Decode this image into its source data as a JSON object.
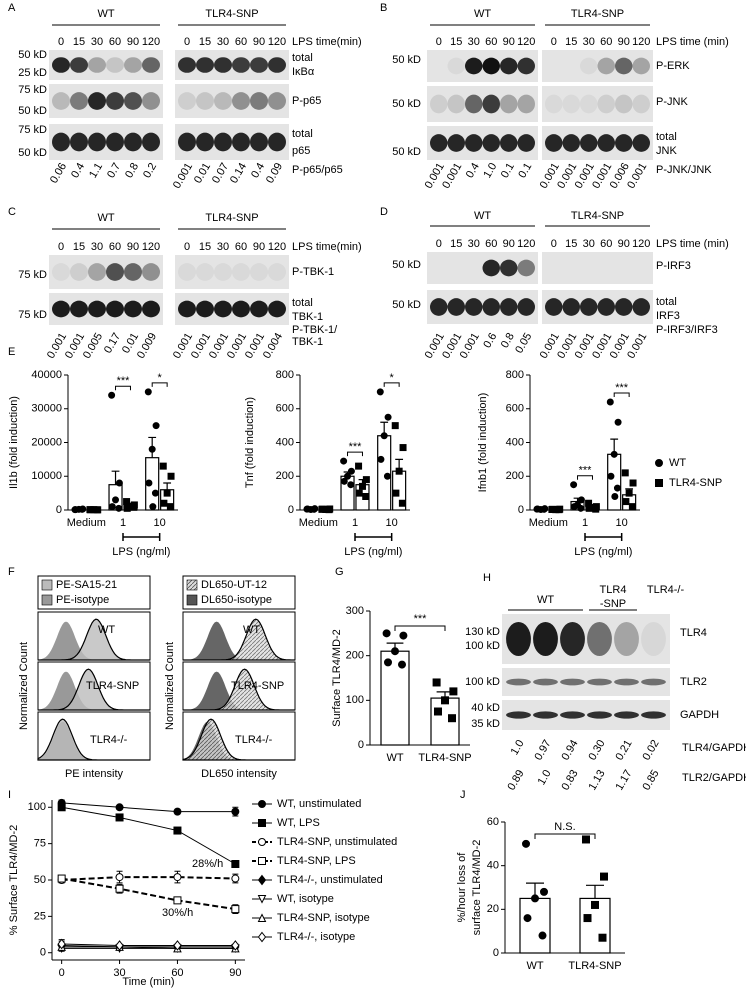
{
  "blots": [
    {
      "label": "A",
      "groups": [
        "WT",
        "TLR4-SNP"
      ],
      "times": [
        0,
        15,
        30,
        60,
        90,
        120
      ],
      "time_label": "LPS time(min)",
      "rows": [
        {
          "markers": [
            "50 kD",
            "25 kD"
          ],
          "name": [
            "total",
            "IκBα"
          ]
        },
        {
          "markers": [
            "75 kD",
            "50 kD"
          ],
          "name": [
            "P-p65"
          ]
        },
        {
          "markers": [
            "75 kD",
            "50 kD"
          ],
          "name": [
            "total",
            "p65"
          ]
        }
      ],
      "ratios": [
        [
          "0.06",
          "0.4",
          "1.1",
          "0.7",
          "0.8",
          "0.2"
        ],
        [
          "0.001",
          "0.01",
          "0.07",
          "0.14",
          "0.4",
          "0.09"
        ]
      ],
      "ratio_label": [
        "P-p65/p65"
      ]
    },
    {
      "label": "B",
      "groups": [
        "WT",
        "TLR4-SNP"
      ],
      "times": [
        0,
        15,
        30,
        60,
        90,
        120
      ],
      "time_label": "LPS time (min)",
      "rows": [
        {
          "markers": [
            "50 kD"
          ],
          "name": [
            "P-ERK"
          ]
        },
        {
          "markers": [
            "50 kD"
          ],
          "name": [
            "P-JNK"
          ]
        },
        {
          "markers": [
            "50 kD"
          ],
          "name": [
            "total",
            "JNK"
          ]
        }
      ],
      "ratios": [
        [
          "0.001",
          "0.001",
          "0.4",
          "1.0",
          "0.1",
          "0.1"
        ],
        [
          "0.001",
          "0.001",
          "0.001",
          "0.001",
          "0.006",
          "0.001"
        ]
      ],
      "ratio_label": [
        "P-JNK/JNK"
      ]
    },
    {
      "label": "C",
      "groups": [
        "WT",
        "TLR4-SNP"
      ],
      "times": [
        0,
        15,
        30,
        60,
        90,
        120
      ],
      "time_label": "LPS time(min)",
      "rows": [
        {
          "markers": [
            "75 kD"
          ],
          "name": [
            "P-TBK-1"
          ]
        },
        {
          "markers": [
            "75 kD"
          ],
          "name": [
            "total",
            "TBK-1"
          ]
        }
      ],
      "ratios": [
        [
          "0.001",
          "0.001",
          "0.005",
          "0.17",
          "0.01",
          "0.009"
        ],
        [
          "0.001",
          "0.001",
          "0.001",
          "0.001",
          "0.001",
          "0.004"
        ]
      ],
      "ratio_label": [
        "P-TBK-1/",
        "TBK-1"
      ]
    },
    {
      "label": "D",
      "groups": [
        "WT",
        "TLR4-SNP"
      ],
      "times": [
        0,
        15,
        30,
        60,
        90,
        120
      ],
      "time_label": "LPS time (min)",
      "rows": [
        {
          "markers": [
            "50 kD"
          ],
          "name": [
            "P-IRF3"
          ]
        },
        {
          "markers": [
            "50 kD"
          ],
          "name": [
            "total",
            "IRF3"
          ]
        }
      ],
      "ratios": [
        [
          "0.001",
          "0.001",
          "0.001",
          "0.6",
          "0.8",
          "0.05"
        ],
        [
          "0.001",
          "0.001",
          "0.001",
          "0.001",
          "0.001",
          "0.001"
        ]
      ],
      "ratio_label": [
        "P-IRF3/IRF3"
      ]
    }
  ],
  "blot_h": {
    "label": "H",
    "groups": [
      [
        "WT"
      ],
      [
        "TLR4",
        "-SNP"
      ],
      [
        "TLR4-/-"
      ]
    ],
    "rows": [
      {
        "markers": [
          "130 kD",
          "100 kD"
        ],
        "name": [
          "TLR4"
        ]
      },
      {
        "markers": [
          "100 kD"
        ],
        "name": [
          "TLR2"
        ]
      },
      {
        "markers": [
          "40 kD",
          "35 kD"
        ],
        "name": [
          "GAPDH"
        ]
      }
    ],
    "ratios": [
      {
        "values": [
          "1.0",
          "0.97",
          "0.94",
          "0.30",
          "0.21",
          "0.02"
        ],
        "label": "TLR4/GAPDH"
      },
      {
        "values": [
          "0.89",
          "1.0",
          "0.83",
          "1.13",
          "1.17",
          "0.85"
        ],
        "label": "TLR2/GAPDH"
      }
    ]
  },
  "flow": {
    "label": "F",
    "ylabel": "Normalized Count",
    "rows": [
      "WT",
      "TLR4-SNP",
      "TLR4-/-"
    ],
    "panels": [
      {
        "legend": [
          "PE-SA15-21",
          "PE-isotype"
        ],
        "xlabel": "PE intensity"
      },
      {
        "legend": [
          "DL650-UT-12",
          "DL650-isotype"
        ],
        "xlabel": "DL650 intensity"
      }
    ]
  },
  "chart_data": [
    {
      "type": "bar",
      "panel": "E",
      "ylabel": "Il1b (fold induction)",
      "xlabel": "LPS (ng/ml)",
      "categories": [
        "Medium",
        "1",
        "10"
      ],
      "ylim": [
        0,
        40000
      ],
      "yticks": [
        0,
        10000,
        20000,
        30000,
        40000
      ],
      "sig": [
        null,
        "***",
        "*"
      ],
      "series": [
        {
          "color": "#000",
          "marker": "circle",
          "values": [
            200,
            7500,
            15500
          ],
          "errors": [
            100,
            4000,
            6000
          ],
          "points": [
            [
              100,
              300,
              200,
              100,
              200
            ],
            [
              34000,
              8000,
              3000,
              1000,
              500
            ],
            [
              35000,
              25000,
              18000,
              8000,
              5000,
              1000
            ]
          ]
        },
        {
          "color": "#000",
          "marker": "square",
          "values": [
            100,
            1500,
            6000
          ],
          "errors": [
            50,
            500,
            2000
          ],
          "points": [
            [
              100,
              50,
              100,
              80,
              60
            ],
            [
              2500,
              1500,
              1000,
              500,
              800
            ],
            [
              13000,
              10000,
              5000,
              2000,
              1000
            ]
          ]
        }
      ]
    },
    {
      "type": "bar",
      "ylabel": "Tnf (fold induction)",
      "xlabel": "LPS (ng/ml)",
      "categories": [
        "Medium",
        "1",
        "10"
      ],
      "ylim": [
        0,
        800
      ],
      "yticks": [
        0,
        200,
        400,
        600,
        800
      ],
      "sig": [
        null,
        "***",
        "*"
      ],
      "series": [
        {
          "color": "#000",
          "marker": "circle",
          "values": [
            5,
            200,
            440
          ],
          "errors": [
            2,
            25,
            80
          ],
          "points": [
            [
              5,
              8,
              3,
              6,
              4
            ],
            [
              290,
              230,
              200,
              170,
              150
            ],
            [
              700,
              550,
              440,
              300,
              200
            ]
          ]
        },
        {
          "color": "#000",
          "marker": "square",
          "values": [
            4,
            150,
            230
          ],
          "errors": [
            2,
            30,
            70
          ],
          "points": [
            [
              4,
              6,
              3,
              5,
              2
            ],
            [
              260,
              180,
              140,
              100,
              80
            ],
            [
              500,
              370,
              230,
              100,
              40
            ]
          ]
        }
      ]
    },
    {
      "type": "bar",
      "ylabel": "Ifnb1 (fold induction)",
      "xlabel": "LPS (ng/ml)",
      "categories": [
        "Medium",
        "1",
        "10"
      ],
      "ylim": [
        0,
        800
      ],
      "yticks": [
        0,
        200,
        400,
        600,
        800
      ],
      "sig": [
        null,
        "***",
        "***"
      ],
      "series": [
        {
          "name": "WT",
          "color": "#000",
          "marker": "circle",
          "values": [
            5,
            50,
            330
          ],
          "errors": [
            2,
            20,
            90
          ],
          "points": [
            [
              5,
              8,
              3,
              6,
              4
            ],
            [
              150,
              60,
              30,
              20,
              10
            ],
            [
              640,
              520,
              330,
              200,
              130,
              80
            ]
          ]
        },
        {
          "name": "TLR4-SNP",
          "color": "#000",
          "marker": "square",
          "values": [
            3,
            20,
            90
          ],
          "errors": [
            1,
            6,
            35
          ],
          "points": [
            [
              3,
              5,
              2,
              4,
              2
            ],
            [
              40,
              20,
              15,
              10,
              5
            ],
            [
              220,
              160,
              100,
              50,
              20
            ]
          ]
        }
      ]
    },
    {
      "type": "bar",
      "panel": "G",
      "ylabel": "Surface TLR4/MD-2",
      "categories": [
        "WT",
        "TLR4-SNP"
      ],
      "ylim": [
        0,
        300
      ],
      "yticks": [
        0,
        100,
        200,
        300
      ],
      "annotation": "***",
      "series": [
        {
          "color": "#000",
          "marker": [
            "circle",
            "square"
          ],
          "values": [
            210,
            105
          ],
          "errors": [
            18,
            14
          ],
          "points": [
            [
              250,
              245,
              210,
              185,
              180
            ],
            [
              140,
              120,
              100,
              75,
              60
            ]
          ]
        }
      ]
    },
    {
      "type": "line",
      "panel": "I",
      "ylabel": "% Surface TLR4/MD-2",
      "xlabel": "Time (min)",
      "x": [
        0,
        30,
        60,
        90
      ],
      "xlim": [
        -5,
        95
      ],
      "xticks": [
        0,
        30,
        60,
        90
      ],
      "ylim": [
        -5,
        105
      ],
      "yticks": [
        0,
        25,
        50,
        75,
        100
      ],
      "annotations": [
        "28%/h",
        "30%/h"
      ],
      "series": [
        {
          "name": "WT, unstimulated",
          "color": "#000",
          "marker": "circle",
          "filled": true,
          "dashed": false,
          "values": [
            103,
            100,
            97,
            97
          ],
          "errors": [
            2,
            1,
            1,
            3
          ]
        },
        {
          "name": "WT, LPS",
          "color": "#000",
          "marker": "square",
          "filled": true,
          "dashed": false,
          "values": [
            100,
            93,
            84,
            61
          ],
          "errors": [
            2,
            1,
            2,
            2
          ]
        },
        {
          "name": "TLR4-SNP, unstimulated",
          "color": "#000",
          "marker": "circle",
          "filled": false,
          "dashed": true,
          "values": [
            50,
            52,
            52,
            51
          ],
          "errors": [
            2,
            4,
            4,
            3
          ]
        },
        {
          "name": "TLR4-SNP, LPS",
          "color": "#000",
          "marker": "square",
          "filled": false,
          "dashed": true,
          "values": [
            51,
            44,
            36,
            30
          ],
          "errors": [
            2,
            3,
            2,
            3
          ]
        },
        {
          "name": "TLR4-/-, unstimulated",
          "color": "#000",
          "marker": "diamond",
          "filled": true,
          "dashed": false,
          "values": [
            5,
            4,
            4,
            4
          ],
          "errors": [
            4,
            1,
            1,
            1
          ]
        },
        {
          "name": "WT, isotype",
          "color": "#000",
          "marker": "triangle-down",
          "filled": false,
          "dashed": false,
          "values": [
            3,
            3,
            3,
            3
          ],
          "errors": [
            1,
            1,
            1,
            1
          ]
        },
        {
          "name": "TLR4-SNP, isotype",
          "color": "#000",
          "marker": "triangle-up",
          "filled": false,
          "dashed": false,
          "values": [
            4,
            4,
            3,
            3
          ],
          "errors": [
            1,
            1,
            1,
            1
          ]
        },
        {
          "name": "TLR4-/-, isotype",
          "color": "#000",
          "marker": "diamond",
          "filled": false,
          "dashed": false,
          "values": [
            6,
            5,
            5,
            5
          ],
          "errors": [
            2,
            1,
            1,
            1
          ]
        }
      ]
    },
    {
      "type": "bar",
      "panel": "J",
      "ylabel": [
        "%/hour loss of",
        "surface TLR4/MD-2"
      ],
      "categories": [
        "WT",
        "TLR4-SNP"
      ],
      "ylim": [
        0,
        60
      ],
      "yticks": [
        0,
        20,
        40,
        60
      ],
      "annotation": "N.S.",
      "series": [
        {
          "color": "#000",
          "marker": [
            "circle",
            "square"
          ],
          "values": [
            25,
            25
          ],
          "errors": [
            7,
            6
          ],
          "points": [
            [
              50,
              28,
              25,
              16,
              8
            ],
            [
              52,
              35,
              22,
              16,
              7
            ]
          ]
        }
      ]
    }
  ]
}
